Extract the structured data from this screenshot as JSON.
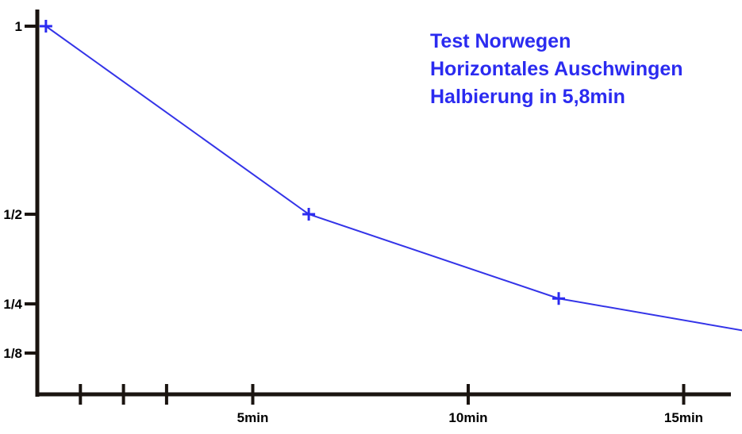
{
  "chart_data": {
    "type": "line",
    "title": "",
    "annotation": [
      "Test Norwegen",
      "Horizontales Auschwingen",
      "Halbierung in 5,8min"
    ],
    "xlabel": "",
    "ylabel": "",
    "x_ticks": [
      {
        "value": 1,
        "label": ""
      },
      {
        "value": 2,
        "label": ""
      },
      {
        "value": 3,
        "label": ""
      },
      {
        "value": 5,
        "label": "5min"
      },
      {
        "value": 10,
        "label": "10min"
      },
      {
        "value": 15,
        "label": "15min"
      }
    ],
    "y_ticks": [
      {
        "value": 1,
        "label": "1"
      },
      {
        "value": 0.5,
        "label": "1/2"
      },
      {
        "value": 0.25,
        "label": "1/4"
      },
      {
        "value": 0.125,
        "label": "1/8"
      }
    ],
    "xlim": [
      0,
      16.2
    ],
    "series": [
      {
        "x": [
          0.2,
          6.3,
          12.1,
          16.5
        ],
        "y": [
          1,
          0.5,
          0.265,
          0.18
        ],
        "markers": [
          true,
          true,
          true,
          false
        ]
      }
    ],
    "colors": {
      "series": "#3434e8",
      "annotation": "#2b2bf0",
      "axis": "#1a1410"
    }
  }
}
